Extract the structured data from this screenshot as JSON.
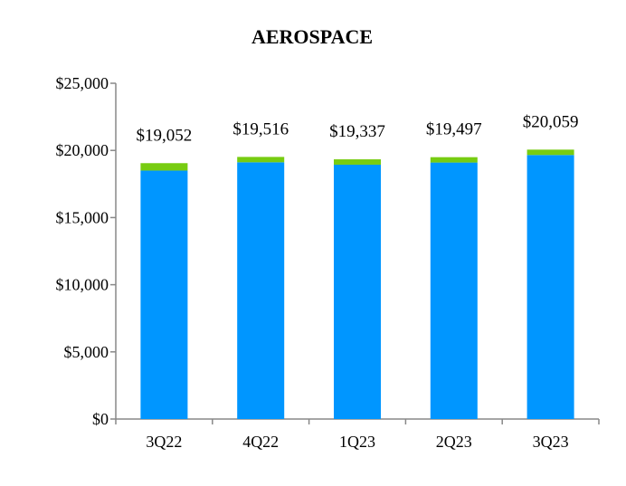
{
  "chart_data": {
    "type": "bar",
    "stacked": true,
    "title": "AEROSPACE",
    "categories": [
      "3Q22",
      "4Q22",
      "1Q23",
      "2Q23",
      "3Q23"
    ],
    "series": [
      {
        "values": [
          18500,
          19116,
          18937,
          19097,
          19659
        ],
        "color": "#0096FF"
      },
      {
        "values": [
          552,
          400,
          400,
          400,
          400
        ],
        "color": "#77CC11"
      }
    ],
    "totals_labels": [
      "$19,052",
      "$19,516",
      "$19,337",
      "$19,497",
      "$20,059"
    ],
    "ylim": [
      0,
      25000
    ],
    "yticks": [
      0,
      5000,
      10000,
      15000,
      20000,
      25000
    ],
    "ytick_labels": [
      "$0",
      "$5,000",
      "$10,000",
      "$15,000",
      "$20,000",
      "$25,000"
    ],
    "grid": false
  }
}
